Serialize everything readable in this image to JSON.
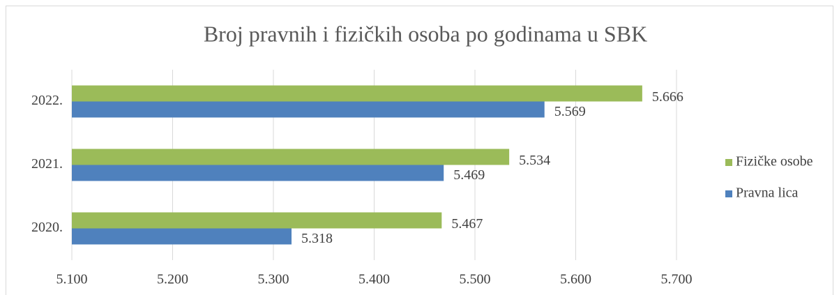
{
  "chart_data": {
    "type": "barh",
    "title": "Broj pravnih i fizičkih osoba po godinama u SBK",
    "categories": [
      "2020.",
      "2021.",
      "2022."
    ],
    "series": [
      {
        "name": "Pravna lica",
        "color": "#4f81bd",
        "values": [
          5318,
          5469,
          5569
        ],
        "value_labels": [
          "5.318",
          "5.469",
          "5.569"
        ]
      },
      {
        "name": "Fizičke osobe",
        "color": "#9bbb59",
        "values": [
          5467,
          5534,
          5666
        ],
        "value_labels": [
          "5.467",
          "5.534",
          "5.666"
        ]
      }
    ],
    "xlim": [
      5100,
      5700
    ],
    "xticks": [
      {
        "value": 5100,
        "label": "5.100"
      },
      {
        "value": 5200,
        "label": "5.200"
      },
      {
        "value": 5300,
        "label": "5.300"
      },
      {
        "value": 5400,
        "label": "5.400"
      },
      {
        "value": 5500,
        "label": "5.500"
      },
      {
        "value": 5600,
        "label": "5.600"
      },
      {
        "value": 5700,
        "label": "5.700"
      }
    ],
    "grid": true,
    "legend": "right"
  }
}
